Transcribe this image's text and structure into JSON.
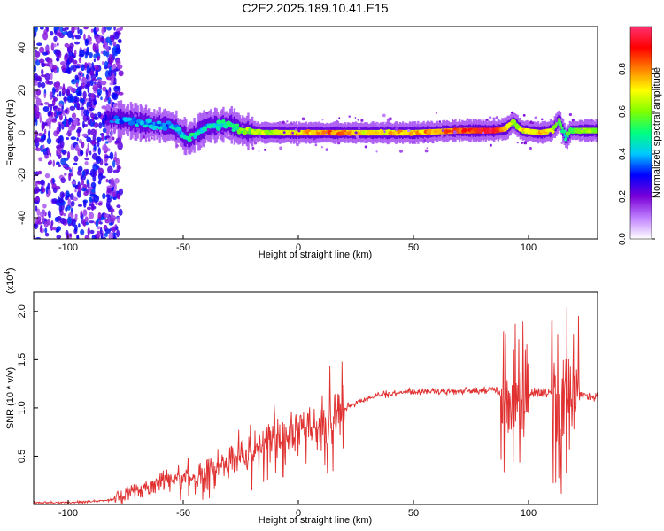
{
  "title": "C2E2.2025.189.10.41.E15",
  "chart_data": [
    {
      "type": "heatmap",
      "xlabel": "Height of straight line (km)",
      "ylabel": "Frequency (Hz)",
      "xlim": [
        -115,
        130
      ],
      "ylim": [
        -50,
        50
      ],
      "xticks": [
        -100,
        -50,
        0,
        50,
        100
      ],
      "yticks": [
        -40,
        -20,
        0,
        20,
        40
      ],
      "colorbar": {
        "label": "Normalized spectral amplitude",
        "range": [
          0,
          1
        ],
        "ticks": [
          "0.0",
          "0.2",
          "0.4",
          "0.6",
          "0.8"
        ],
        "colors": [
          "#ffffff",
          "#c080ff",
          "#7a00d6",
          "#0000ff",
          "#00c8ff",
          "#00ff80",
          "#80ff00",
          "#ffff00",
          "#ff8000",
          "#ff0000",
          "#ff3070"
        ]
      },
      "ridge": {
        "x": [
          -82,
          -75,
          -65,
          -55,
          -48,
          -40,
          -30,
          -25,
          -15,
          -5,
          0,
          10,
          20,
          30,
          50,
          70,
          85,
          90,
          93,
          97,
          105,
          110,
          113,
          116,
          118,
          130
        ],
        "frequency": [
          7,
          6,
          4,
          3,
          -3,
          3,
          4,
          1,
          0,
          0,
          0,
          0,
          0,
          0,
          0,
          1,
          1,
          2,
          5,
          1,
          0,
          1,
          6,
          -3,
          1,
          1
        ],
        "amplitude": [
          0.3,
          0.35,
          0.4,
          0.4,
          0.45,
          0.45,
          0.5,
          0.6,
          0.65,
          0.7,
          0.75,
          0.8,
          0.8,
          0.7,
          0.75,
          0.85,
          0.95,
          0.8,
          0.6,
          0.7,
          0.75,
          0.7,
          0.6,
          0.5,
          0.6,
          0.65
        ]
      },
      "noise_region_x": [
        -115,
        -80
      ]
    },
    {
      "type": "line",
      "xlabel": "Height of straight line (km)",
      "ylabel": "SNR (10 * v/v)",
      "y_multiplier": "(x10",
      "y_multiplier_exp": "4",
      "y_multiplier_close": ")",
      "xlim": [
        -115,
        130
      ],
      "ylim": [
        0,
        2.2
      ],
      "xticks": [
        -100,
        -50,
        0,
        50,
        100
      ],
      "yticks": [
        0.5,
        1.0,
        1.5,
        2.0
      ],
      "yticklabels": [
        "0.5",
        "1.0",
        "1.5",
        "2.0"
      ],
      "color": "#e03030",
      "series": [
        {
          "x": [
            -115,
            -100,
            -90,
            -85,
            -80,
            -75,
            -70,
            -65,
            -60,
            -55,
            -50,
            -45,
            -40,
            -35,
            -30,
            -25,
            -20,
            -15,
            -12,
            -10,
            -5,
            0,
            5,
            10,
            15,
            20,
            25,
            30,
            40,
            50,
            60,
            70,
            80,
            85,
            88,
            90,
            92,
            94,
            96,
            98,
            100,
            105,
            110,
            112,
            114,
            116,
            118,
            120,
            125,
            130
          ],
          "y": [
            0.02,
            0.02,
            0.03,
            0.04,
            0.05,
            0.1,
            0.15,
            0.2,
            0.25,
            0.25,
            0.28,
            0.25,
            0.3,
            0.35,
            0.45,
            0.5,
            0.55,
            0.6,
            0.7,
            0.65,
            0.7,
            0.8,
            0.75,
            0.8,
            0.9,
            1.0,
            1.05,
            1.1,
            1.15,
            1.17,
            1.17,
            1.17,
            1.18,
            1.2,
            1.1,
            1.0,
            0.9,
            1.2,
            1.1,
            1.15,
            1.15,
            1.15,
            1.15,
            1.0,
            0.9,
            1.15,
            1.2,
            1.15,
            1.12,
            1.12
          ]
        }
      ]
    }
  ]
}
